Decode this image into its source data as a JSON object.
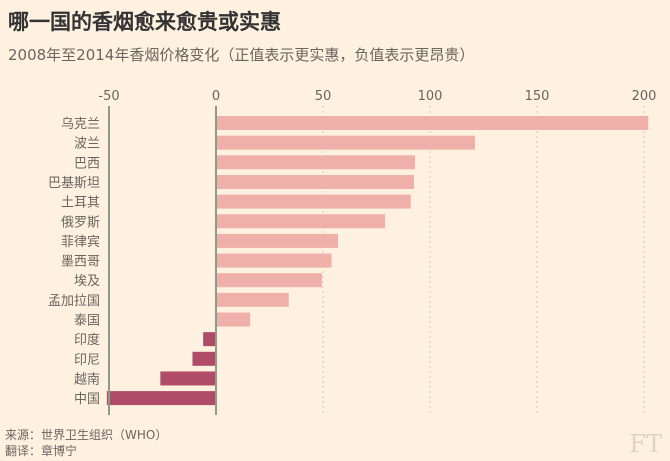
{
  "header": {
    "title": "哪一国的香烟愈来愈贵或实惠",
    "subtitle": "2008年至2014年香烟价格变化（正值表示更实惠，负值表示更昂贵）"
  },
  "chart_data": {
    "type": "bar",
    "orientation": "horizontal",
    "title": "哪一国的香烟愈来愈贵或实惠",
    "subtitle": "2008年至2014年香烟价格变化（正值表示更实惠，负值表示更昂贵）",
    "categories": [
      "乌克兰",
      "波兰",
      "巴西",
      "巴基斯坦",
      "土耳其",
      "俄罗斯",
      "菲律宾",
      "墨西哥",
      "埃及",
      "孟加拉国",
      "泰国",
      "印度",
      "印尼",
      "越南",
      "中国"
    ],
    "values": [
      202,
      121,
      93,
      92.5,
      91,
      79,
      57,
      54,
      49.5,
      34,
      16,
      -6,
      -11,
      -26,
      -51
    ],
    "xlim": [
      -50,
      200
    ],
    "xticks": [
      "-50",
      "0",
      "50",
      "100",
      "150",
      "200"
    ],
    "xtick_values": [
      -50,
      0,
      50,
      100,
      150,
      200
    ],
    "grid": true,
    "colors": {
      "positive": "#f0b0aa",
      "negative": "#b04b68",
      "axis": "#8f9a8c",
      "grid": "#cfc6bb"
    }
  },
  "footer": {
    "source": "来源：世界卫生组织（WHO）",
    "translator": "翻译：章博宁",
    "logo": "FT"
  }
}
